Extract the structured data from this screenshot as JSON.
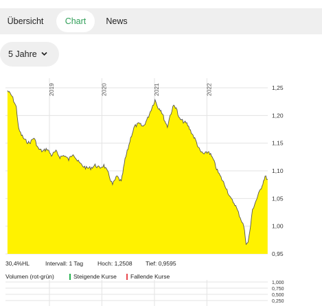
{
  "tabs": [
    {
      "label": "Übersicht",
      "active": false
    },
    {
      "label": "Chart",
      "active": true
    },
    {
      "label": "News",
      "active": false
    }
  ],
  "period": {
    "label": "5 Jahre",
    "icon": "chevron-down-icon"
  },
  "colors": {
    "area_fill": "#fff200",
    "line": "#555555",
    "accent_green": "#2f9e57",
    "rising": "#22b14c",
    "falling": "#e8474c",
    "grid": "#e3e3e3"
  },
  "chart_data": {
    "type": "area",
    "xlabel": "",
    "ylabel": "",
    "year_labels": [
      "2019",
      "2020",
      "2021",
      "2022"
    ],
    "y_ticks": [
      "1,25",
      "1,20",
      "1,15",
      "1,10",
      "1,05",
      "1,00",
      "0,95"
    ],
    "ylim": [
      0.95,
      1.25
    ],
    "x_range": [
      "2018-03",
      "2023-03"
    ],
    "grid": true,
    "series": [
      {
        "values": [
          {
            "x": "2018-03-15",
            "y": 1.245
          },
          {
            "x": "2018-04-15",
            "y": 1.235
          },
          {
            "x": "2018-05-15",
            "y": 1.215
          },
          {
            "x": "2018-06-01",
            "y": 1.175
          },
          {
            "x": "2018-06-20",
            "y": 1.165
          },
          {
            "x": "2018-07-15",
            "y": 1.155
          },
          {
            "x": "2018-08-15",
            "y": 1.15
          },
          {
            "x": "2018-09-15",
            "y": 1.16
          },
          {
            "x": "2018-10-15",
            "y": 1.14
          },
          {
            "x": "2018-11-15",
            "y": 1.135
          },
          {
            "x": "2018-12-15",
            "y": 1.14
          },
          {
            "x": "2019-01-15",
            "y": 1.128
          },
          {
            "x": "2019-02-15",
            "y": 1.135
          },
          {
            "x": "2019-03-15",
            "y": 1.125
          },
          {
            "x": "2019-04-15",
            "y": 1.128
          },
          {
            "x": "2019-05-15",
            "y": 1.12
          },
          {
            "x": "2019-06-15",
            "y": 1.132
          },
          {
            "x": "2019-07-15",
            "y": 1.118
          },
          {
            "x": "2019-08-15",
            "y": 1.11
          },
          {
            "x": "2019-09-15",
            "y": 1.105
          },
          {
            "x": "2019-10-15",
            "y": 1.105
          },
          {
            "x": "2019-11-15",
            "y": 1.11
          },
          {
            "x": "2019-12-15",
            "y": 1.105
          },
          {
            "x": "2020-01-15",
            "y": 1.11
          },
          {
            "x": "2020-02-15",
            "y": 1.095
          },
          {
            "x": "2020-03-15",
            "y": 1.075
          },
          {
            "x": "2020-04-15",
            "y": 1.09
          },
          {
            "x": "2020-05-15",
            "y": 1.08
          },
          {
            "x": "2020-06-10",
            "y": 1.12
          },
          {
            "x": "2020-07-01",
            "y": 1.14
          },
          {
            "x": "2020-07-20",
            "y": 1.16
          },
          {
            "x": "2020-08-15",
            "y": 1.18
          },
          {
            "x": "2020-09-15",
            "y": 1.185
          },
          {
            "x": "2020-10-15",
            "y": 1.18
          },
          {
            "x": "2020-11-15",
            "y": 1.195
          },
          {
            "x": "2020-12-15",
            "y": 1.215
          },
          {
            "x": "2021-01-05",
            "y": 1.228
          },
          {
            "x": "2021-01-25",
            "y": 1.215
          },
          {
            "x": "2021-02-15",
            "y": 1.21
          },
          {
            "x": "2021-03-15",
            "y": 1.19
          },
          {
            "x": "2021-04-01",
            "y": 1.18
          },
          {
            "x": "2021-04-20",
            "y": 1.2
          },
          {
            "x": "2021-05-15",
            "y": 1.218
          },
          {
            "x": "2021-06-01",
            "y": 1.215
          },
          {
            "x": "2021-06-20",
            "y": 1.195
          },
          {
            "x": "2021-07-15",
            "y": 1.19
          },
          {
            "x": "2021-08-15",
            "y": 1.185
          },
          {
            "x": "2021-09-15",
            "y": 1.17
          },
          {
            "x": "2021-10-15",
            "y": 1.155
          },
          {
            "x": "2021-11-15",
            "y": 1.135
          },
          {
            "x": "2021-12-15",
            "y": 1.13
          },
          {
            "x": "2022-01-15",
            "y": 1.135
          },
          {
            "x": "2022-02-15",
            "y": 1.12
          },
          {
            "x": "2022-03-15",
            "y": 1.1
          },
          {
            "x": "2022-04-15",
            "y": 1.085
          },
          {
            "x": "2022-05-15",
            "y": 1.07
          },
          {
            "x": "2022-06-15",
            "y": 1.05
          },
          {
            "x": "2022-07-15",
            "y": 1.04
          },
          {
            "x": "2022-08-15",
            "y": 1.02
          },
          {
            "x": "2022-09-15",
            "y": 1.0
          },
          {
            "x": "2022-10-01",
            "y": 0.97
          },
          {
            "x": "2022-10-15",
            "y": 0.97
          },
          {
            "x": "2022-11-01",
            "y": 1.0
          },
          {
            "x": "2022-11-15",
            "y": 1.03
          },
          {
            "x": "2022-12-15",
            "y": 1.05
          },
          {
            "x": "2023-01-15",
            "y": 1.07
          },
          {
            "x": "2023-02-10",
            "y": 1.09
          },
          {
            "x": "2023-02-28",
            "y": 1.085
          }
        ]
      }
    ]
  },
  "stats": {
    "change": "30,4%HL",
    "interval": "Intervall: 1 Tag",
    "high": "Hoch: 1,2508",
    "low": "Tief: 0,9595"
  },
  "volume": {
    "label": "Volumen (rot-grün)",
    "rising_label": "Steigende Kurse",
    "falling_label": "Fallende Kurse",
    "ticks": [
      "1,000",
      "0,750",
      "0,500",
      "0,250"
    ]
  }
}
